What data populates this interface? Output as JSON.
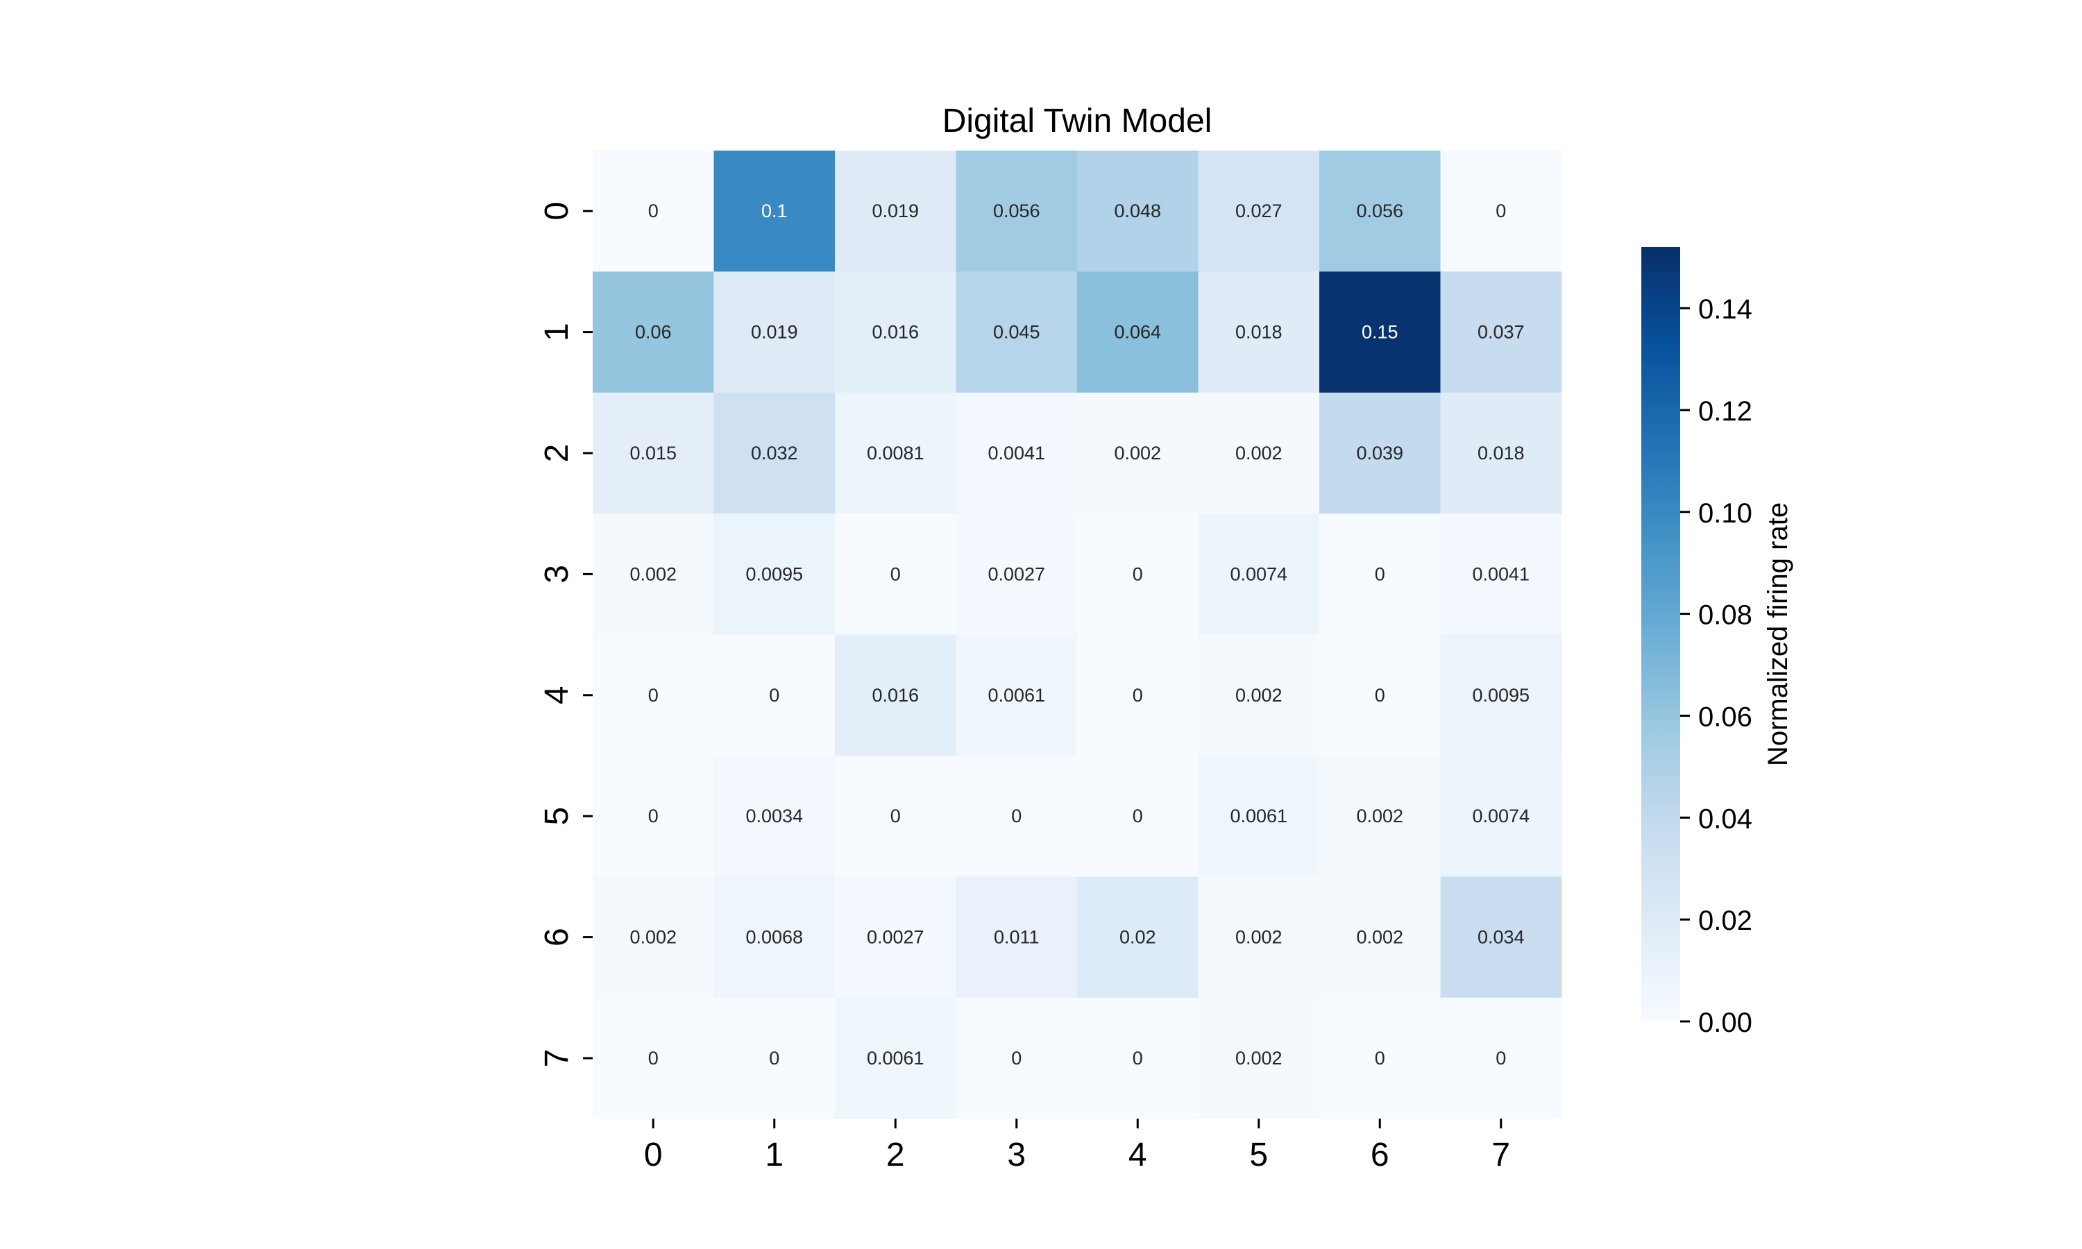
{
  "chart_data": {
    "type": "heatmap",
    "title": "Digital Twin Model",
    "xlabel": "",
    "ylabel": "",
    "x_categories": [
      "0",
      "1",
      "2",
      "3",
      "4",
      "5",
      "6",
      "7"
    ],
    "y_categories": [
      "0",
      "1",
      "2",
      "3",
      "4",
      "5",
      "6",
      "7"
    ],
    "values": [
      [
        0,
        0.1,
        0.019,
        0.056,
        0.048,
        0.027,
        0.056,
        0
      ],
      [
        0.06,
        0.019,
        0.016,
        0.045,
        0.064,
        0.018,
        0.15,
        0.037
      ],
      [
        0.015,
        0.032,
        0.0081,
        0.0041,
        0.002,
        0.002,
        0.039,
        0.018
      ],
      [
        0.002,
        0.0095,
        0,
        0.0027,
        0,
        0.0074,
        0,
        0.0041
      ],
      [
        0,
        0,
        0.016,
        0.0061,
        0,
        0.002,
        0,
        0.0095
      ],
      [
        0,
        0.0034,
        0,
        0,
        0,
        0.0061,
        0.002,
        0.0074
      ],
      [
        0.002,
        0.0068,
        0.0027,
        0.011,
        0.02,
        0.002,
        0.002,
        0.034
      ],
      [
        0,
        0,
        0.0061,
        0,
        0,
        0.002,
        0,
        0
      ]
    ],
    "colormap": "Blues",
    "colorbar": {
      "label": "Normalized firing rate",
      "range": [
        0,
        0.152
      ],
      "ticks": [
        0,
        0.02,
        0.04,
        0.06,
        0.08,
        0.1,
        0.12,
        0.14
      ],
      "tick_labels": [
        "0.00",
        "0.02",
        "0.04",
        "0.06",
        "0.08",
        "0.10",
        "0.12",
        "0.14"
      ]
    },
    "annotated": true,
    "grid": false
  }
}
